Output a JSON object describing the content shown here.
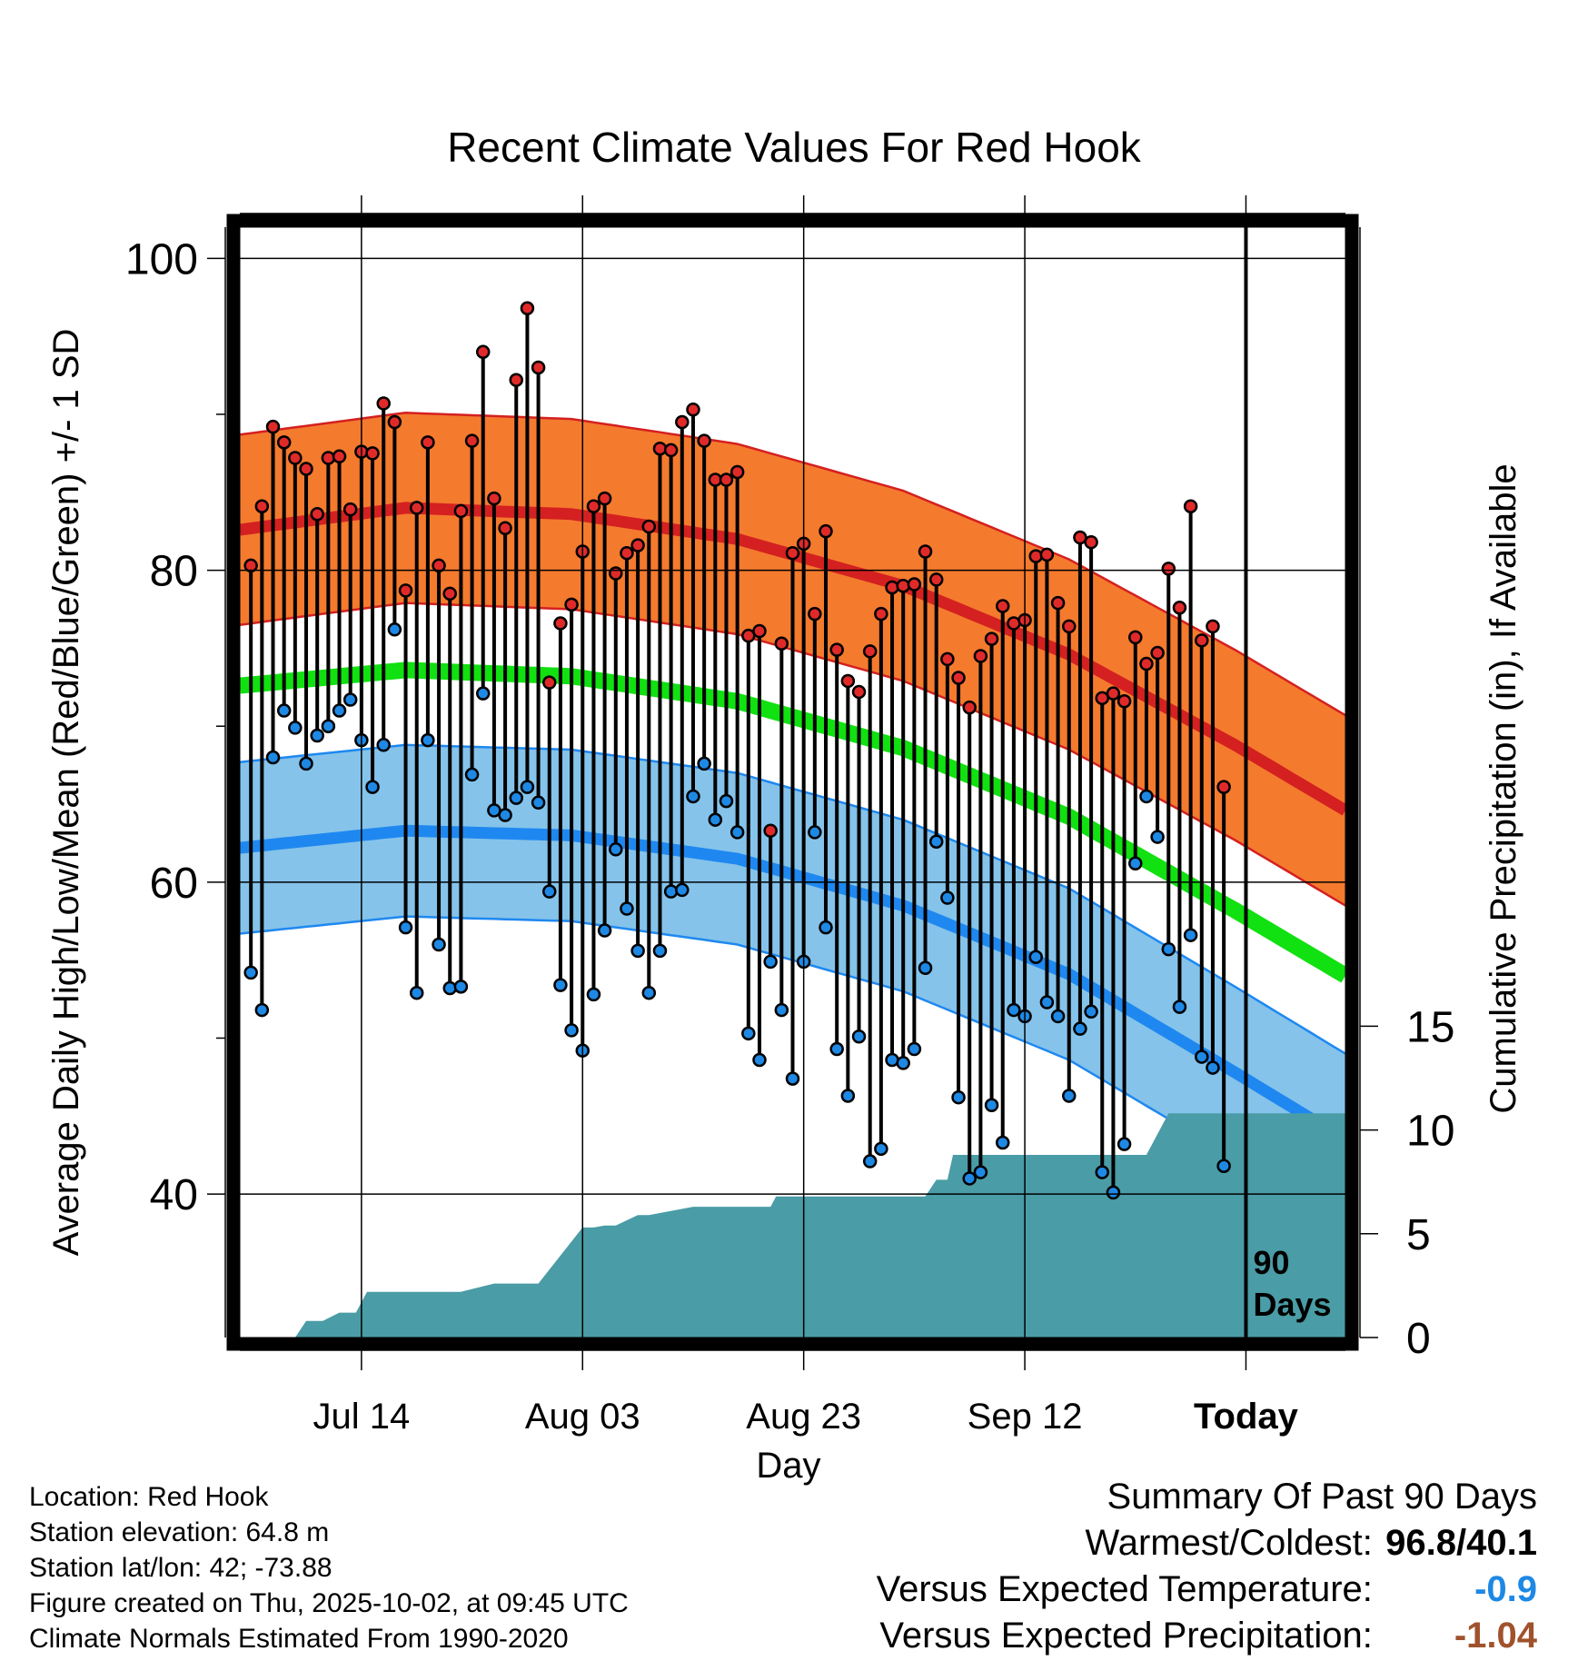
{
  "chart_data": {
    "type": "line",
    "title": "Recent Climate Values For Red Hook",
    "xlabel": "Day",
    "ylabel": "Average Daily High/Low/Mean (Red/Blue/Green) +/- 1 SD",
    "y2label": "Cumulative Precipitation (in), If Available",
    "ylim": [
      30.8,
      102
    ],
    "y2lim": [
      0,
      53.5
    ],
    "xlim": [
      0,
      100
    ],
    "y_ticks": [
      40,
      60,
      80,
      100
    ],
    "y2_ticks": [
      0,
      5,
      10,
      15
    ],
    "x_ticks": [
      {
        "day": 11,
        "label": "Jul 14"
      },
      {
        "day": 31,
        "label": "Aug 03"
      },
      {
        "day": 51,
        "label": "Aug 23"
      },
      {
        "day": 71,
        "label": "Sep 12"
      },
      {
        "day": 91,
        "label": "Today"
      }
    ],
    "today_day": 91,
    "today_label": [
      "90",
      "Days"
    ],
    "normals": {
      "x": [
        0,
        15,
        30,
        45,
        60,
        75,
        90,
        100
      ],
      "high": [
        82.6,
        84.0,
        83.6,
        82.0,
        79.0,
        74.6,
        68.8,
        64.6
      ],
      "high_sd": 6.1,
      "mean": [
        72.6,
        73.6,
        73.2,
        71.6,
        68.6,
        64.2,
        58.2,
        54.0
      ],
      "low": [
        62.2,
        63.3,
        63.0,
        61.5,
        58.5,
        54.1,
        47.8,
        43.5
      ],
      "low_sd": 5.5
    },
    "series": [
      {
        "name": "High",
        "values": [
          80.3,
          84.1,
          89.2,
          88.2,
          87.2,
          86.5,
          83.6,
          87.2,
          87.3,
          83.9,
          87.6,
          87.5,
          90.7,
          89.5,
          78.7,
          84.0,
          88.2,
          80.3,
          78.5,
          83.8,
          88.3,
          94.0,
          84.6,
          82.7,
          92.2,
          96.8,
          93.0,
          72.8,
          76.6,
          77.8,
          81.2,
          84.1,
          84.6,
          79.8,
          81.1,
          81.6,
          82.8,
          87.8,
          87.7,
          89.5,
          90.3,
          88.3,
          85.8,
          85.8,
          86.3,
          75.8,
          76.1,
          63.3,
          75.3,
          81.1,
          81.7,
          77.2,
          82.5,
          74.9,
          72.9,
          72.2,
          74.8,
          77.2,
          78.9,
          79.0,
          79.1,
          81.2,
          79.4,
          74.3,
          73.1,
          71.2,
          74.5,
          75.6,
          77.7,
          76.6,
          76.8,
          80.9,
          81.0,
          77.9,
          76.4,
          82.1,
          81.8,
          71.8,
          72.1,
          71.6,
          75.7,
          74.0,
          74.7,
          80.1,
          77.6,
          84.1,
          75.5,
          76.4,
          66.1
        ]
      },
      {
        "name": "Low",
        "values": [
          54.2,
          51.8,
          68.0,
          71.0,
          69.9,
          67.6,
          69.4,
          70.0,
          71.0,
          71.7,
          69.1,
          66.1,
          68.8,
          76.2,
          57.1,
          52.9,
          69.1,
          56.0,
          53.2,
          53.3,
          66.9,
          72.1,
          64.6,
          64.3,
          65.4,
          66.1,
          65.1,
          59.4,
          53.4,
          50.5,
          49.2,
          52.8,
          56.9,
          62.1,
          58.3,
          55.6,
          52.9,
          55.6,
          59.4,
          59.5,
          65.5,
          67.6,
          64.0,
          65.2,
          63.2,
          50.3,
          48.6,
          54.9,
          51.8,
          47.4,
          54.9,
          63.2,
          57.1,
          49.3,
          46.3,
          50.1,
          42.1,
          42.9,
          48.6,
          48.4,
          49.3,
          54.5,
          62.6,
          59.0,
          46.2,
          41.0,
          41.4,
          45.7,
          43.3,
          51.8,
          51.4,
          55.2,
          52.3,
          51.4,
          46.3,
          50.6,
          51.7,
          41.4,
          40.1,
          43.2,
          61.2,
          65.5,
          62.9,
          55.7,
          52.0,
          56.6,
          48.8,
          48.1,
          41.8
        ]
      },
      {
        "name": "Cumulative Precipitation",
        "x": [
          5,
          6,
          7.5,
          9,
          10.5,
          11.5,
          20,
          23,
          24,
          26,
          27,
          31,
          32,
          33,
          34,
          36,
          37,
          41,
          42,
          47,
          48,
          48.5,
          52,
          61.5,
          62,
          63,
          64,
          64.5,
          65,
          66,
          69,
          81,
          82,
          84,
          100
        ],
        "values": [
          0,
          0.8,
          0.8,
          1.2,
          1.2,
          2.2,
          2.2,
          2.6,
          2.6,
          2.6,
          2.6,
          5.3,
          5.3,
          5.4,
          5.4,
          5.9,
          5.9,
          6.3,
          6.3,
          6.3,
          6.3,
          6.8,
          6.8,
          6.8,
          6.8,
          7.6,
          7.6,
          8.8,
          8.8,
          8.8,
          8.8,
          8.8,
          8.8,
          10.8,
          10.8
        ]
      }
    ]
  },
  "footer_left": {
    "location": "Location: Red Hook",
    "elevation": "Station elevation: 64.8 m",
    "latlon": "Station lat/lon: 42; -73.88",
    "created": "Figure created on Thu, 2025-10-02, at 09:45 UTC",
    "normals": "Climate Normals Estimated From 1990-2020"
  },
  "summary": {
    "title": "Summary Of Past 90 Days",
    "warm_cold_label": "Warmest/Coldest:",
    "warm_cold_value": "96.8/40.1",
    "temp_label": "Versus Expected Temperature:",
    "temp_value": "-0.9",
    "precip_label": "Versus Expected Precipitation:",
    "precip_value": "-1.04"
  },
  "colors": {
    "high_band": "#f47a2e",
    "high_line": "#d42020",
    "mean_line": "#11e011",
    "low_band": "#85c3ea",
    "low_line": "#1e88f0",
    "precip": "#4a9ca6",
    "point_high": "#e02a2a",
    "point_low": "#1e88e5"
  }
}
